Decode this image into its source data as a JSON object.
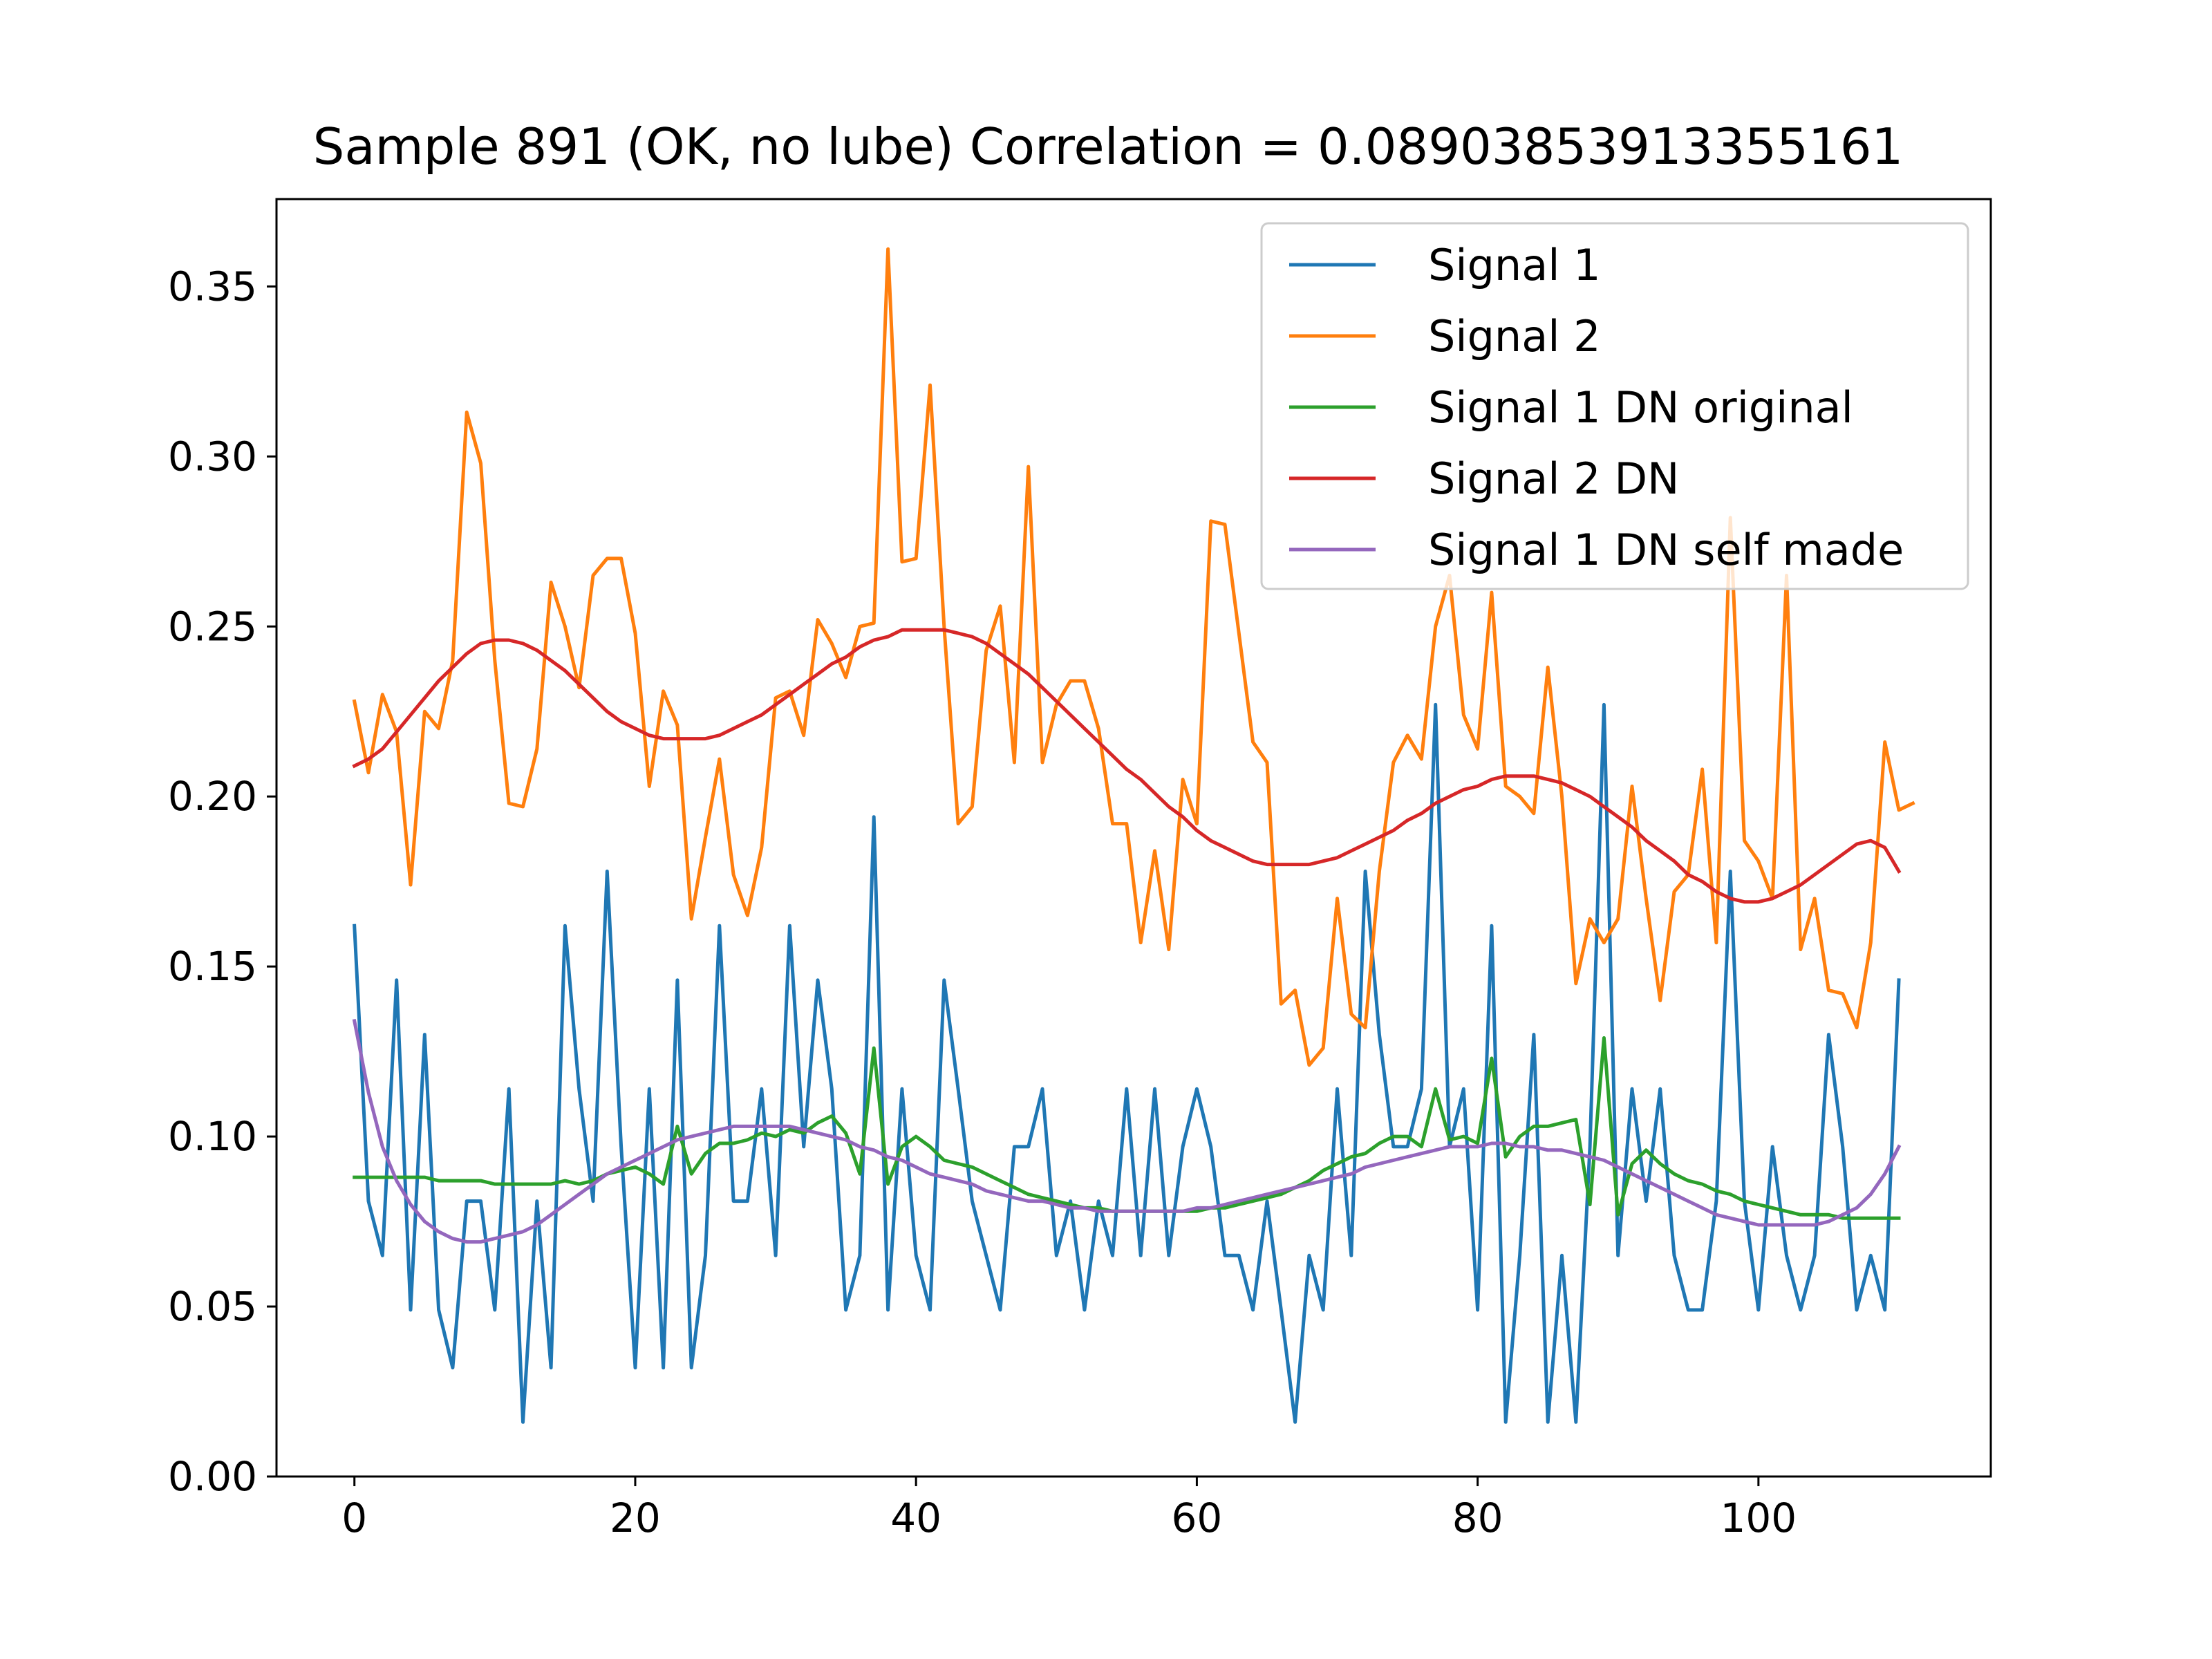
{
  "chart_data": {
    "type": "line",
    "title": "Sample 891 (OK, no lube)  Correlation = 0.08903853913355161",
    "xlabel": "",
    "ylabel": "",
    "xlim": [
      -5.55,
      116.55
    ],
    "ylim": [
      0.0,
      0.3757
    ],
    "xticks": [
      0,
      20,
      40,
      60,
      80,
      100
    ],
    "yticks": [
      0.0,
      0.05,
      0.1,
      0.15,
      0.2,
      0.25,
      0.3,
      0.35
    ],
    "xtick_labels": [
      "0",
      "20",
      "40",
      "60",
      "80",
      "100"
    ],
    "ytick_labels": [
      "0.00",
      "0.05",
      "0.10",
      "0.15",
      "0.20",
      "0.25",
      "0.30",
      "0.35"
    ],
    "grid": false,
    "legend_position": "top-right",
    "series": [
      {
        "name": "Signal 1",
        "color": "#1f77b4",
        "values": [
          0.162,
          0.081,
          0.065,
          0.146,
          0.049,
          0.13,
          0.049,
          0.032,
          0.081,
          0.081,
          0.049,
          0.114,
          0.016,
          0.081,
          0.032,
          0.162,
          0.114,
          0.081,
          0.178,
          0.097,
          0.032,
          0.114,
          0.032,
          0.146,
          0.032,
          0.065,
          0.162,
          0.081,
          0.081,
          0.114,
          0.065,
          0.162,
          0.097,
          0.146,
          0.114,
          0.049,
          0.065,
          0.194,
          0.049,
          0.114,
          0.065,
          0.049,
          0.146,
          0.114,
          0.081,
          0.065,
          0.049,
          0.097,
          0.097,
          0.114,
          0.065,
          0.081,
          0.049,
          0.081,
          0.065,
          0.114,
          0.065,
          0.114,
          0.065,
          0.097,
          0.114,
          0.097,
          0.065,
          0.065,
          0.049,
          0.081,
          0.049,
          0.016,
          0.065,
          0.049,
          0.114,
          0.065,
          0.178,
          0.13,
          0.097,
          0.097,
          0.114,
          0.227,
          0.097,
          0.114,
          0.049,
          0.162,
          0.016,
          0.065,
          0.13,
          0.016,
          0.065,
          0.016,
          0.097,
          0.227,
          0.065,
          0.114,
          0.081,
          0.114,
          0.065,
          0.049,
          0.049,
          0.081,
          0.178,
          0.081,
          0.049,
          0.097,
          0.065,
          0.049,
          0.065,
          0.13,
          0.097,
          0.049,
          0.065,
          0.049,
          0.146
        ]
      },
      {
        "name": "Signal 2",
        "color": "#ff7f0e",
        "values": [
          0.228,
          0.207,
          0.23,
          0.219,
          0.174,
          0.225,
          0.22,
          0.24,
          0.313,
          0.298,
          0.24,
          0.198,
          0.197,
          0.214,
          0.263,
          0.25,
          0.232,
          0.265,
          0.27,
          0.27,
          0.248,
          0.203,
          0.231,
          0.221,
          0.164,
          0.188,
          0.211,
          0.177,
          0.165,
          0.185,
          0.229,
          0.231,
          0.218,
          0.252,
          0.245,
          0.235,
          0.25,
          0.251,
          0.361,
          0.269,
          0.27,
          0.321,
          0.25,
          0.192,
          0.197,
          0.243,
          0.256,
          0.21,
          0.297,
          0.21,
          0.227,
          0.234,
          0.234,
          0.22,
          0.192,
          0.192,
          0.157,
          0.184,
          0.155,
          0.205,
          0.192,
          0.281,
          0.28,
          0.248,
          0.216,
          0.21,
          0.139,
          0.143,
          0.121,
          0.126,
          0.17,
          0.136,
          0.132,
          0.178,
          0.21,
          0.218,
          0.211,
          0.25,
          0.265,
          0.224,
          0.214,
          0.26,
          0.203,
          0.2,
          0.195,
          0.238,
          0.2,
          0.145,
          0.164,
          0.157,
          0.164,
          0.203,
          0.17,
          0.14,
          0.172,
          0.177,
          0.208,
          0.157,
          0.282,
          0.187,
          0.181,
          0.17,
          0.265,
          0.155,
          0.17,
          0.143,
          0.142,
          0.132,
          0.157,
          0.216,
          0.196,
          0.198
        ]
      },
      {
        "name": "Signal 1 DN original",
        "color": "#2ca02c",
        "values": [
          0.088,
          0.088,
          0.088,
          0.088,
          0.088,
          0.088,
          0.087,
          0.087,
          0.087,
          0.087,
          0.086,
          0.086,
          0.086,
          0.086,
          0.086,
          0.087,
          0.086,
          0.087,
          0.089,
          0.09,
          0.091,
          0.089,
          0.086,
          0.103,
          0.089,
          0.095,
          0.098,
          0.098,
          0.099,
          0.101,
          0.1,
          0.102,
          0.101,
          0.104,
          0.106,
          0.101,
          0.089,
          0.126,
          0.086,
          0.097,
          0.1,
          0.097,
          0.093,
          0.092,
          0.091,
          0.089,
          0.087,
          0.085,
          0.083,
          0.082,
          0.081,
          0.08,
          0.079,
          0.079,
          0.078,
          0.078,
          0.078,
          0.078,
          0.078,
          0.078,
          0.078,
          0.079,
          0.079,
          0.08,
          0.081,
          0.082,
          0.083,
          0.085,
          0.087,
          0.09,
          0.092,
          0.094,
          0.095,
          0.098,
          0.1,
          0.1,
          0.097,
          0.114,
          0.099,
          0.1,
          0.098,
          0.123,
          0.094,
          0.1,
          0.103,
          0.103,
          0.104,
          0.105,
          0.08,
          0.129,
          0.077,
          0.092,
          0.096,
          0.092,
          0.089,
          0.087,
          0.086,
          0.084,
          0.083,
          0.081,
          0.08,
          0.079,
          0.078,
          0.077,
          0.077,
          0.077,
          0.076,
          0.076,
          0.076,
          0.076,
          0.076
        ]
      },
      {
        "name": "Signal 2 DN",
        "color": "#d62728",
        "values": [
          0.209,
          0.211,
          0.214,
          0.219,
          0.224,
          0.229,
          0.234,
          0.238,
          0.242,
          0.245,
          0.246,
          0.246,
          0.245,
          0.243,
          0.24,
          0.237,
          0.233,
          0.229,
          0.225,
          0.222,
          0.22,
          0.218,
          0.217,
          0.217,
          0.217,
          0.217,
          0.218,
          0.22,
          0.222,
          0.224,
          0.227,
          0.23,
          0.233,
          0.236,
          0.239,
          0.241,
          0.244,
          0.246,
          0.247,
          0.249,
          0.249,
          0.249,
          0.249,
          0.248,
          0.247,
          0.245,
          0.242,
          0.239,
          0.236,
          0.232,
          0.228,
          0.224,
          0.22,
          0.216,
          0.212,
          0.208,
          0.205,
          0.201,
          0.197,
          0.194,
          0.19,
          0.187,
          0.185,
          0.183,
          0.181,
          0.18,
          0.18,
          0.18,
          0.18,
          0.181,
          0.182,
          0.184,
          0.186,
          0.188,
          0.19,
          0.193,
          0.195,
          0.198,
          0.2,
          0.202,
          0.203,
          0.205,
          0.206,
          0.206,
          0.206,
          0.205,
          0.204,
          0.202,
          0.2,
          0.197,
          0.194,
          0.191,
          0.187,
          0.184,
          0.181,
          0.177,
          0.175,
          0.172,
          0.17,
          0.169,
          0.169,
          0.17,
          0.172,
          0.174,
          0.177,
          0.18,
          0.183,
          0.186,
          0.187,
          0.185,
          0.178
        ]
      },
      {
        "name": "Signal 1 DN self made",
        "color": "#9467bd",
        "values": [
          0.134,
          0.113,
          0.097,
          0.087,
          0.08,
          0.075,
          0.072,
          0.07,
          0.069,
          0.069,
          0.07,
          0.071,
          0.072,
          0.074,
          0.077,
          0.08,
          0.083,
          0.086,
          0.089,
          0.091,
          0.093,
          0.095,
          0.097,
          0.099,
          0.1,
          0.101,
          0.102,
          0.103,
          0.103,
          0.103,
          0.103,
          0.103,
          0.102,
          0.101,
          0.1,
          0.099,
          0.097,
          0.096,
          0.094,
          0.093,
          0.091,
          0.089,
          0.088,
          0.087,
          0.086,
          0.084,
          0.083,
          0.082,
          0.081,
          0.081,
          0.08,
          0.079,
          0.079,
          0.078,
          0.078,
          0.078,
          0.078,
          0.078,
          0.078,
          0.078,
          0.079,
          0.079,
          0.08,
          0.081,
          0.082,
          0.083,
          0.084,
          0.085,
          0.086,
          0.087,
          0.088,
          0.089,
          0.091,
          0.092,
          0.093,
          0.094,
          0.095,
          0.096,
          0.097,
          0.097,
          0.097,
          0.098,
          0.098,
          0.097,
          0.097,
          0.096,
          0.096,
          0.095,
          0.094,
          0.093,
          0.091,
          0.089,
          0.087,
          0.085,
          0.083,
          0.081,
          0.079,
          0.077,
          0.076,
          0.075,
          0.074,
          0.074,
          0.074,
          0.074,
          0.074,
          0.075,
          0.077,
          0.079,
          0.083,
          0.089,
          0.097
        ]
      }
    ]
  }
}
